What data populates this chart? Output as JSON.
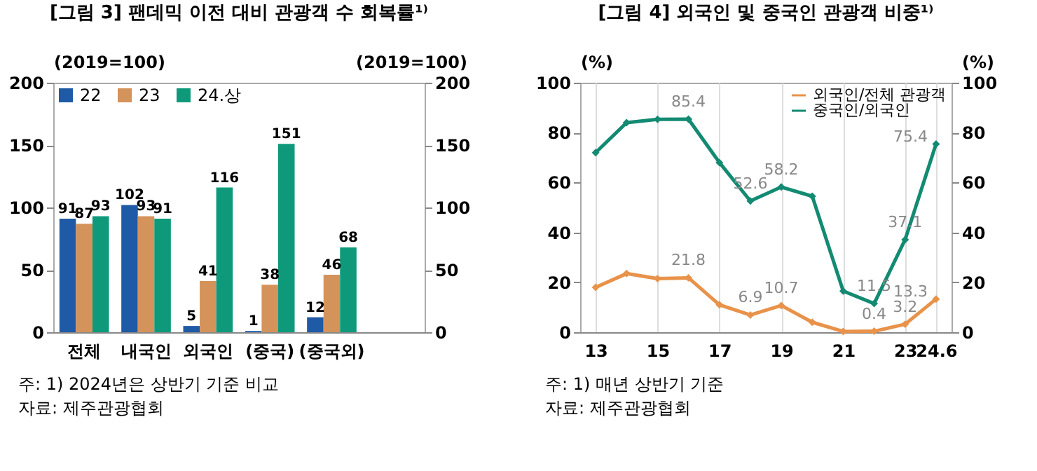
{
  "chart_data": [
    {
      "type": "bar",
      "title": "[그림 3] 팬데믹 이전 대비 관광객 수 회복률¹⁾",
      "ylabel": "(2019=100)",
      "y2label": "(2019=100)",
      "categories": [
        "전체",
        "내국인",
        "외국인",
        "(중국)",
        "(중국외)"
      ],
      "series": [
        {
          "name": "22",
          "color": "#1f5aa6",
          "values": [
            91,
            102,
            5,
            1,
            12
          ]
        },
        {
          "name": "23",
          "color": "#d4935a",
          "values": [
            87,
            93,
            41,
            38,
            46
          ]
        },
        {
          "name": "24.상",
          "color": "#0e9a7a",
          "values": [
            93,
            91,
            116,
            151,
            68
          ]
        }
      ],
      "ylim": [
        0,
        200
      ],
      "yticks": [
        0,
        50,
        100,
        150,
        200
      ],
      "y2lim": [
        0,
        200
      ],
      "y2ticks": [
        0,
        50,
        100,
        150,
        200
      ],
      "data_labels": true,
      "legend": "top left",
      "grid": false,
      "annotations": [
        "주: 1) 2024년은 상반기 기준 비교",
        "자료: 제주관광협회"
      ]
    },
    {
      "type": "line",
      "title": "[그림 4] 외국인 및 중국인 관광객 비중¹⁾",
      "ylabel": "(%)",
      "y2label": "(%)",
      "categories": [
        "13",
        null,
        "15",
        null,
        "17",
        null,
        "19",
        null,
        "21",
        null,
        "23",
        "24.6"
      ],
      "series": [
        {
          "name": "외국인/전체 관광객",
          "color": "#e8924a",
          "values": [
            18,
            23.5,
            21.5,
            21.8,
            11,
            6.9,
            10.7,
            4,
            0.3,
            0.4,
            3.2,
            13.3
          ],
          "value_labels": [
            null,
            null,
            null,
            "21.8",
            null,
            "6.9",
            "10.7",
            null,
            null,
            "0.4",
            "3.2",
            "13.3"
          ]
        },
        {
          "name": "중국인/외국인",
          "color": "#138a72",
          "values": [
            72,
            84,
            85.3,
            85.4,
            68,
            52.6,
            58.2,
            54.5,
            16.5,
            11.5,
            37.1,
            75.4
          ],
          "value_labels": [
            null,
            null,
            null,
            "85.4",
            null,
            "52.6",
            "58.2",
            null,
            null,
            "11.5",
            "37.1",
            "75.4"
          ]
        }
      ],
      "ylim": [
        0,
        100
      ],
      "yticks": [
        0,
        20,
        40,
        60,
        80,
        100
      ],
      "y2lim": [
        0,
        100
      ],
      "y2ticks": [
        0,
        20,
        40,
        60,
        80,
        100
      ],
      "marker": "diamond",
      "legend": "top right",
      "grid": "x",
      "annotations": [
        "주: 1) 매년 상반기 기준",
        "자료: 제주관광협회"
      ]
    }
  ]
}
